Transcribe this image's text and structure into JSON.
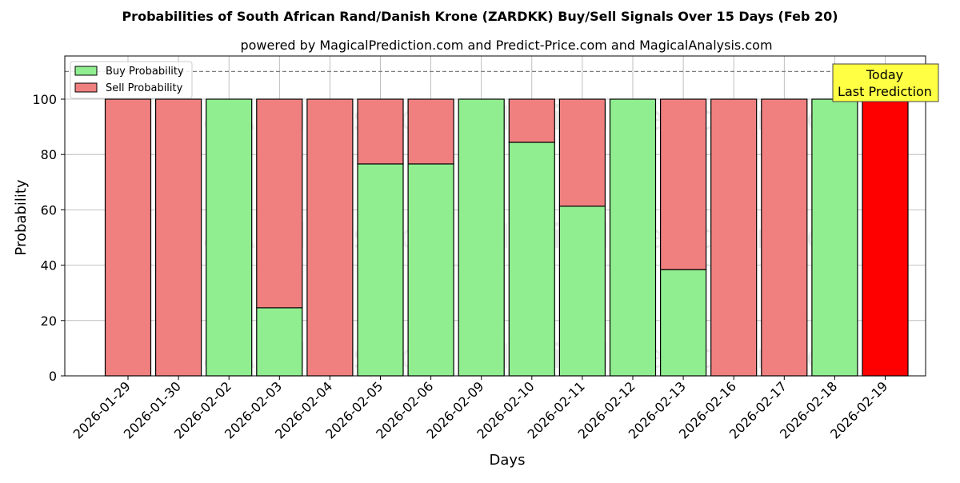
{
  "chart_data": {
    "type": "bar",
    "stacked": true,
    "title": "Probabilities of South African Rand/Danish Krone (ZARDKK) Buy/Sell Signals Over 15 Days (Feb 20)",
    "subtitle": "powered by MagicalPrediction.com and Predict-Price.com and MagicalAnalysis.com",
    "xlabel": "Days",
    "ylabel": "Probability",
    "ylim": [
      0,
      115
    ],
    "yticks": [
      0,
      20,
      40,
      60,
      80,
      100
    ],
    "grid": true,
    "legend_position": "upper left",
    "reference_line": {
      "y": 110,
      "style": "dashed",
      "color": "#808080"
    },
    "categories": [
      "2026-01-29",
      "2026-01-30",
      "2026-02-02",
      "2026-02-03",
      "2026-02-04",
      "2026-02-05",
      "2026-02-06",
      "2026-02-09",
      "2026-02-10",
      "2026-02-11",
      "2026-02-12",
      "2026-02-13",
      "2026-02-16",
      "2026-02-17",
      "2026-02-18",
      "2026-02-19"
    ],
    "series": [
      {
        "name": "Buy Probability",
        "color": "#90ee90",
        "values": [
          0,
          0,
          100,
          24.6,
          0,
          76.6,
          76.6,
          100,
          84.4,
          61.3,
          100,
          38.4,
          0,
          0,
          100,
          0
        ]
      },
      {
        "name": "Sell Probability",
        "color": "#f08080",
        "values": [
          100,
          100,
          0,
          75.4,
          100,
          23.4,
          23.4,
          0,
          15.6,
          38.7,
          0,
          61.6,
          100,
          100,
          0,
          100
        ]
      }
    ],
    "highlight": {
      "index": 15,
      "color": "#ff0000",
      "annotation": [
        "Today",
        "Last Prediction"
      ],
      "annotation_bg": "#ffff44"
    },
    "watermarks": [
      "MagicalAnalysis.com",
      "MagicalPrediction.com"
    ]
  }
}
